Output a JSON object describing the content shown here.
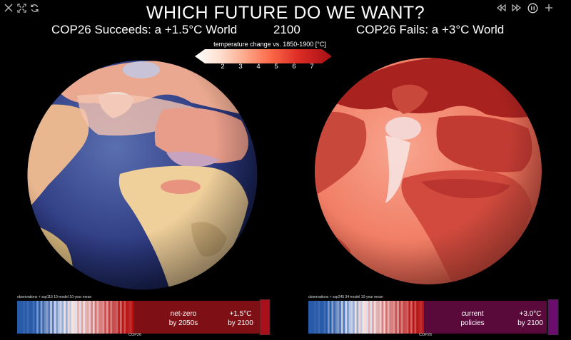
{
  "title": "WHICH FUTURE DO WE WANT?",
  "left_heading": "COP26 Succeeds: a +1.5°C World",
  "year": "2100",
  "right_heading": "COP26 Fails: a +3°C World",
  "legend": {
    "title": "temperature change vs. 1850-1900 [°C]",
    "ticks": [
      "2",
      "3",
      "4",
      "5",
      "6",
      "7"
    ]
  },
  "left_panel": {
    "source_note": "observations + ssp119 10-model 10-year mean",
    "cop_label": "COP26",
    "scenario_text": [
      "net-zero",
      "by 2050s"
    ],
    "warming_text": [
      "+1.5°C",
      "by 2100"
    ],
    "end_color": "#a8101c"
  },
  "right_panel": {
    "source_note": "observations + ssp245 34-model 10-year mean",
    "cop_label": "COP26",
    "scenario_text": [
      "current",
      "policies"
    ],
    "warming_text": [
      "+3.0°C",
      "by 2100"
    ],
    "end_color": "#6a0d6f"
  },
  "controls": {
    "left": [
      "close-icon",
      "fullscreen-icon",
      "refresh-icon"
    ],
    "right": [
      "rewind-icon",
      "fast-forward-icon",
      "pause-icon",
      "plus-icon"
    ]
  }
}
